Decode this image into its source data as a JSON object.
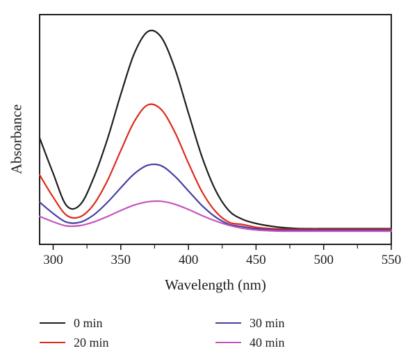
{
  "figure": {
    "background": "#ffffff",
    "axis_color": "#1c1c1c"
  },
  "chart_data": {
    "type": "line",
    "title": "",
    "xlabel": "Wavelength (nm)",
    "ylabel": "Absorbance",
    "xlim": [
      290,
      550
    ],
    "ylim": [
      0,
      1.1
    ],
    "x_major_ticks": [
      300,
      350,
      400,
      450,
      500,
      550
    ],
    "x_minor_ticks": [
      325,
      375,
      425,
      475,
      525
    ],
    "y_ticks": [],
    "grid": false,
    "legend_position": "below",
    "x": [
      290,
      300,
      310,
      320,
      330,
      340,
      350,
      360,
      370,
      380,
      390,
      400,
      410,
      420,
      430,
      440,
      450,
      460,
      470,
      480,
      490,
      500,
      510,
      520,
      530,
      540,
      550
    ],
    "series": [
      {
        "name": "0 min",
        "color": "#1c1c1c",
        "values": [
          0.51,
          0.34,
          0.185,
          0.19,
          0.319,
          0.501,
          0.718,
          0.914,
          1.019,
          0.991,
          0.842,
          0.629,
          0.42,
          0.26,
          0.161,
          0.12,
          0.1,
          0.088,
          0.08,
          0.076,
          0.075,
          0.075,
          0.075,
          0.075,
          0.075,
          0.075,
          0.075
        ]
      },
      {
        "name": "20 min",
        "color": "#dd2a1b",
        "values": [
          0.333,
          0.226,
          0.139,
          0.132,
          0.191,
          0.303,
          0.449,
          0.588,
          0.668,
          0.645,
          0.537,
          0.389,
          0.253,
          0.158,
          0.106,
          0.095,
          0.082,
          0.076,
          0.073,
          0.072,
          0.072,
          0.072,
          0.072,
          0.072,
          0.072,
          0.072,
          0.072
        ]
      },
      {
        "name": "30 min",
        "color": "#4540a1",
        "values": [
          0.202,
          0.148,
          0.106,
          0.106,
          0.141,
          0.2,
          0.271,
          0.338,
          0.379,
          0.376,
          0.326,
          0.256,
          0.186,
          0.131,
          0.096,
          0.085,
          0.075,
          0.07,
          0.068,
          0.068,
          0.068,
          0.068,
          0.068,
          0.068,
          0.068,
          0.068,
          0.068
        ]
      },
      {
        "name": "40 min",
        "color": "#c553bd",
        "values": [
          0.134,
          0.108,
          0.088,
          0.09,
          0.107,
          0.133,
          0.162,
          0.188,
          0.204,
          0.206,
          0.192,
          0.167,
          0.138,
          0.112,
          0.091,
          0.077,
          0.069,
          0.065,
          0.063,
          0.063,
          0.063,
          0.063,
          0.063,
          0.063,
          0.063,
          0.063,
          0.063
        ]
      }
    ]
  }
}
